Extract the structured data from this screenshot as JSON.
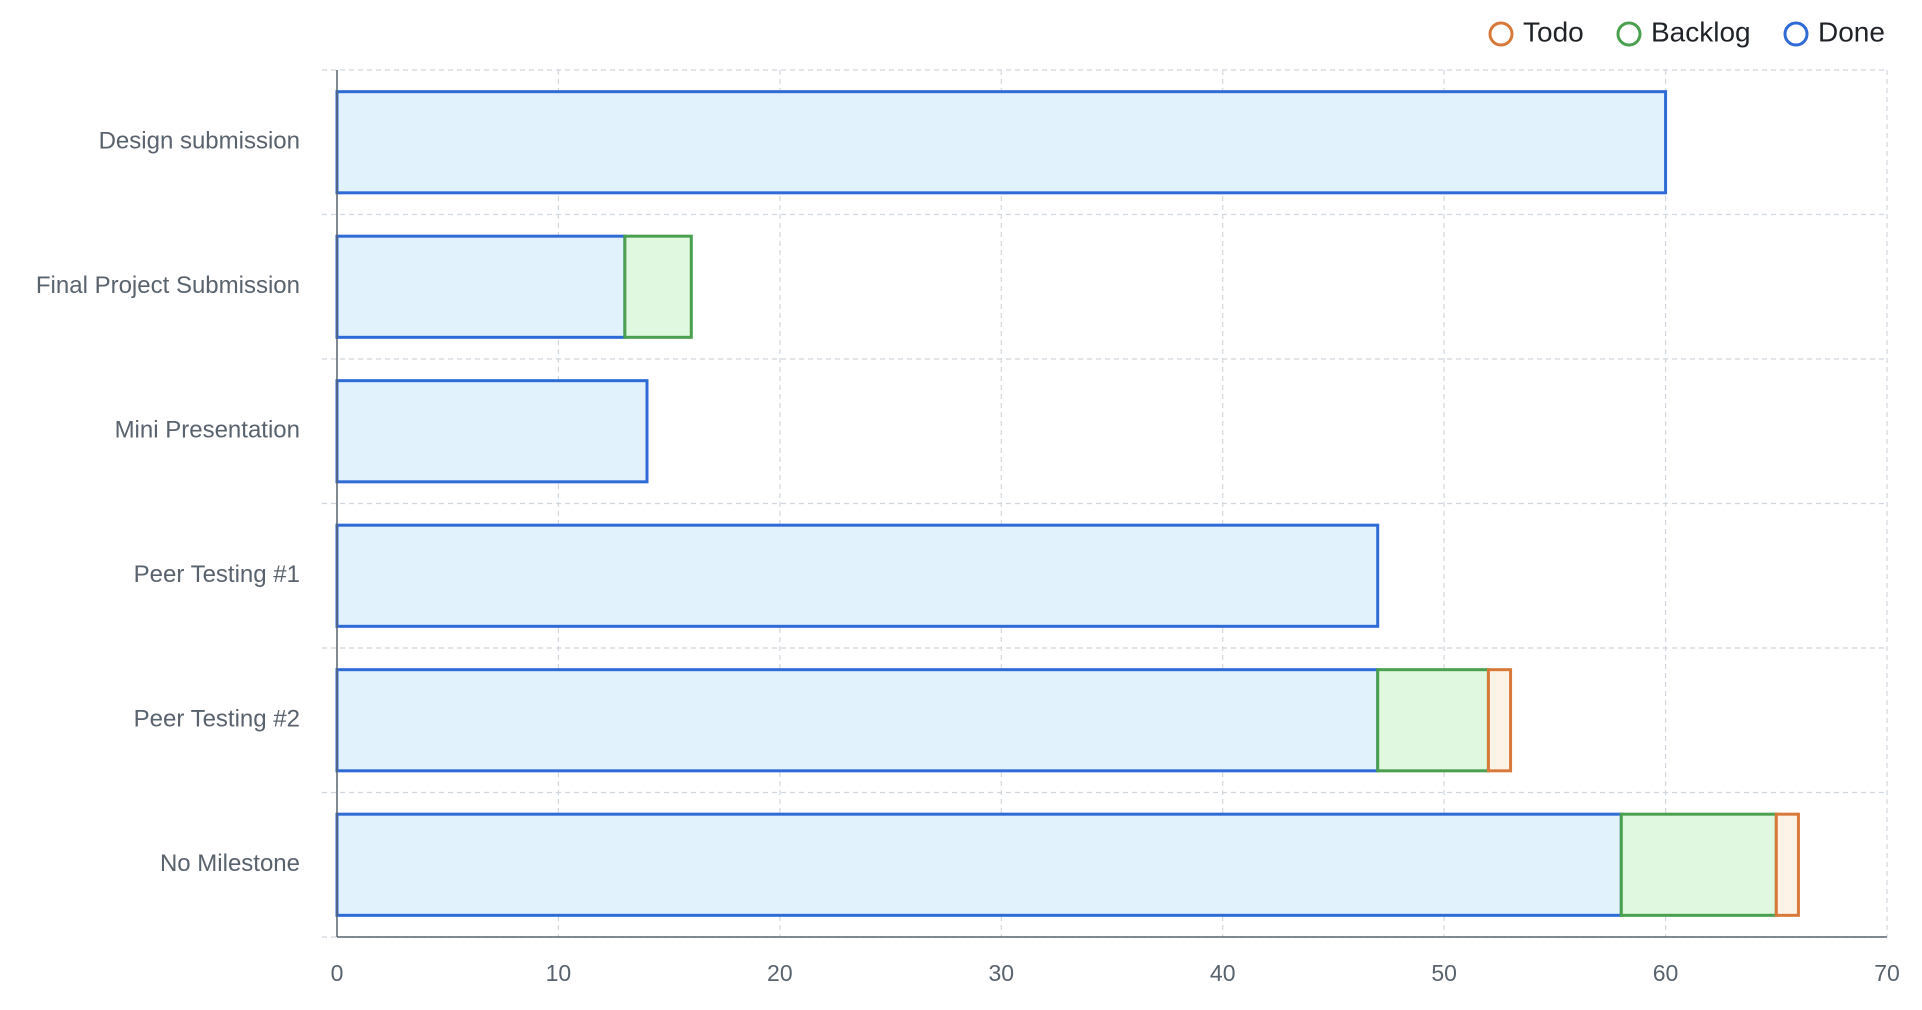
{
  "chart_data": {
    "type": "bar",
    "orientation": "horizontal",
    "stacked": true,
    "categories": [
      "Design submission",
      "Final Project Submission",
      "Mini Presentation",
      "Peer Testing #1",
      "Peer Testing #2",
      "No Milestone"
    ],
    "series": [
      {
        "name": "Done",
        "values": [
          60,
          13,
          14,
          47,
          47,
          58
        ],
        "stroke": "#2f6bd6",
        "fill": "#e1f2fc"
      },
      {
        "name": "Backlog",
        "values": [
          0,
          3,
          0,
          0,
          5,
          7
        ],
        "stroke": "#4aa04e",
        "fill": "#e0f8e0"
      },
      {
        "name": "Todo",
        "values": [
          0,
          0,
          0,
          0,
          1,
          1
        ],
        "stroke": "#d8793a",
        "fill": "#fdf3e7"
      }
    ],
    "legend": {
      "position": "top-right",
      "order": [
        "Todo",
        "Backlog",
        "Done"
      ]
    },
    "x_ticks": [
      "0",
      "10",
      "20",
      "30",
      "40",
      "50",
      "60",
      "70"
    ],
    "xlim": [
      0,
      70
    ],
    "grid": true,
    "title": "",
    "xlabel": "",
    "ylabel": ""
  }
}
